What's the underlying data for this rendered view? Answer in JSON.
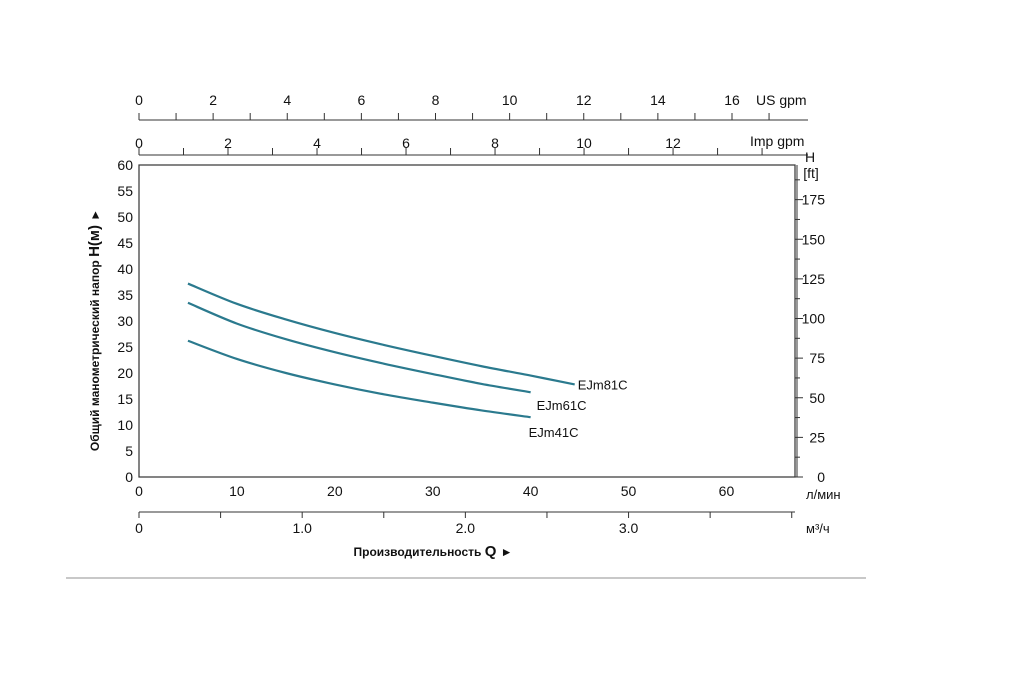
{
  "chart_data": {
    "type": "line",
    "x_unit": "л/мин",
    "xlim": [
      0,
      67
    ],
    "ylim": [
      0,
      60
    ],
    "x_ticks": [
      0,
      10,
      20,
      30,
      40,
      50,
      60
    ],
    "y_ticks": [
      0,
      5,
      10,
      15,
      20,
      25,
      30,
      35,
      40,
      45,
      50,
      55,
      60
    ],
    "y_axis_label": "Общий манометрический напор",
    "y_axis_symbol": "H(м)",
    "arrow_glyph": "►",
    "x_axis_label": "Производительность",
    "x_axis_symbol": "Q",
    "grid": true,
    "series": [
      {
        "name": "EJm81C",
        "color": "#2b7a8e",
        "x": [
          5,
          10,
          15,
          20,
          25,
          30,
          35,
          40,
          44.5
        ],
        "y": [
          37.2,
          33.3,
          30.3,
          27.7,
          25.4,
          23.3,
          21.3,
          19.5,
          17.8
        ]
      },
      {
        "name": "EJm61C",
        "color": "#2b7a8e",
        "x": [
          5,
          10,
          15,
          20,
          25,
          30,
          35,
          40
        ],
        "y": [
          33.5,
          29.5,
          26.5,
          24.0,
          21.8,
          19.8,
          17.9,
          16.3
        ]
      },
      {
        "name": "EJm41C",
        "color": "#2b7a8e",
        "x": [
          5,
          10,
          15,
          20,
          25,
          30,
          35,
          40
        ],
        "y": [
          26.2,
          22.7,
          20.0,
          17.8,
          15.9,
          14.3,
          12.8,
          11.5
        ]
      }
    ],
    "secondary_axes": {
      "us_gpm": {
        "label": "US gpm",
        "min": 0,
        "max": 17.7,
        "ticks": [
          "0",
          "2",
          "4",
          "6",
          "8",
          "10",
          "12",
          "14",
          "16"
        ]
      },
      "imp_gpm": {
        "label": "Imp gpm",
        "min": 0,
        "max": 14.74,
        "ticks": [
          "0",
          "2",
          "4",
          "6",
          "8",
          "10",
          "12"
        ]
      },
      "m3h": {
        "label": "м³/ч",
        "min": 0,
        "max": 4.02,
        "ticks": [
          "0",
          "1.0",
          "2.0",
          "3.0"
        ]
      },
      "head_ft": {
        "label_top": "H",
        "label_unit": "[ft]",
        "min": 0,
        "max": 196.85,
        "ticks": [
          "0",
          "25",
          "50",
          "75",
          "100",
          "125",
          "150",
          "175"
        ]
      }
    }
  }
}
